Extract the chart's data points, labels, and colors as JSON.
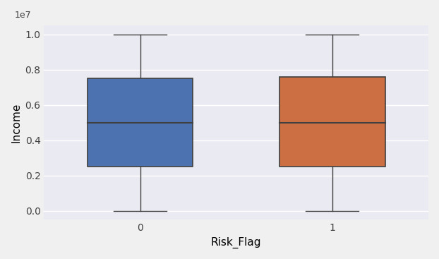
{
  "title": "",
  "xlabel": "Risk_Flag",
  "ylabel": "Income",
  "groups": [
    "0",
    "1"
  ],
  "box_data": {
    "0": {
      "whislo": 0,
      "q1": 2500000,
      "med": 5000000,
      "q3": 7500000,
      "whishi": 10000000
    },
    "1": {
      "whislo": 0,
      "q1": 2500000,
      "med": 5000000,
      "q3": 7600000,
      "whishi": 10000000
    }
  },
  "colors": [
    "#4c72b0",
    "#cc7044"
  ],
  "background_color": "#eaeaf2",
  "grid_color": "#ffffff",
  "ylim": [
    -500000,
    10500000
  ],
  "yticks": [
    0,
    2000000,
    4000000,
    6000000,
    8000000,
    10000000
  ],
  "ytick_labels": [
    "0.0",
    "0.2",
    "0.4",
    "0.6",
    "0.8",
    "1.0"
  ],
  "figsize": [
    6.22,
    3.67
  ],
  "dpi": 100,
  "box_width": 0.55,
  "linecolor": "#404040",
  "mediancolor": "#404040"
}
